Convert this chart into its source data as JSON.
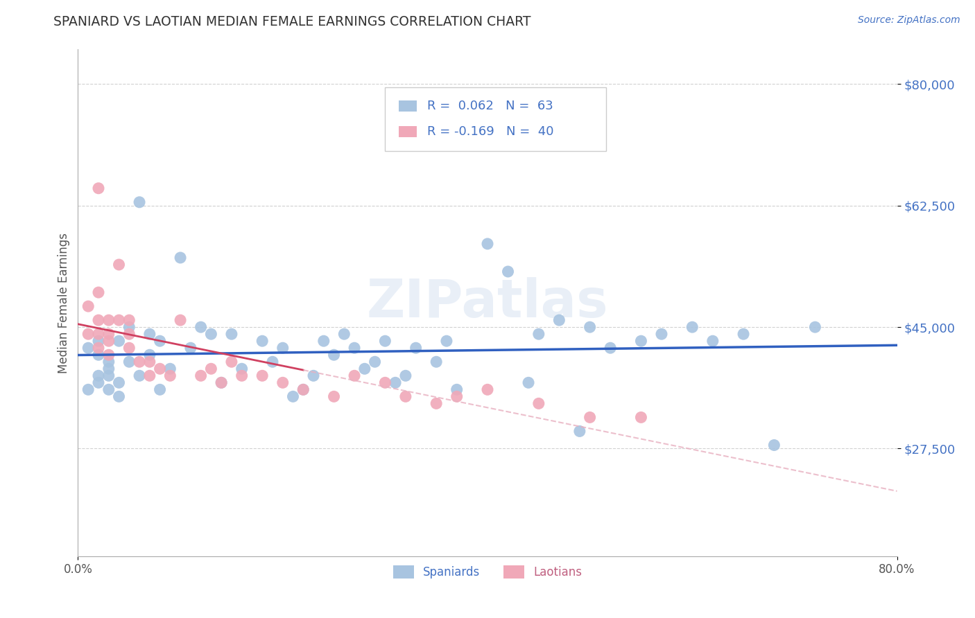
{
  "title": "SPANIARD VS LAOTIAN MEDIAN FEMALE EARNINGS CORRELATION CHART",
  "source_text": "Source: ZipAtlas.com",
  "ylabel": "Median Female Earnings",
  "xlim": [
    0.0,
    0.8
  ],
  "ylim": [
    12000,
    85000
  ],
  "yticks": [
    27500,
    45000,
    62500,
    80000
  ],
  "ytick_labels": [
    "$27,500",
    "$45,000",
    "$62,500",
    "$80,000"
  ],
  "background_color": "#ffffff",
  "grid_color": "#cccccc",
  "spaniards_color": "#a8c4e0",
  "laotians_color": "#f0a8b8",
  "spaniards_line_color": "#3060c0",
  "laotians_line_color": "#d04060",
  "laotians_dash_color": "#e8b0c0",
  "r_spaniards": "0.062",
  "n_spaniards": "63",
  "r_laotians": "-0.169",
  "n_laotians": "40",
  "legend_label_spaniards": "Spaniards",
  "legend_label_laotians": "Laotians",
  "watermark": "ZIPatlas",
  "spaniards_x": [
    0.01,
    0.01,
    0.02,
    0.02,
    0.02,
    0.02,
    0.03,
    0.03,
    0.03,
    0.03,
    0.04,
    0.04,
    0.04,
    0.05,
    0.05,
    0.06,
    0.06,
    0.07,
    0.07,
    0.08,
    0.08,
    0.09,
    0.1,
    0.11,
    0.12,
    0.13,
    0.14,
    0.15,
    0.16,
    0.18,
    0.19,
    0.2,
    0.21,
    0.22,
    0.23,
    0.24,
    0.25,
    0.26,
    0.27,
    0.28,
    0.29,
    0.3,
    0.31,
    0.32,
    0.33,
    0.35,
    0.36,
    0.37,
    0.4,
    0.42,
    0.44,
    0.45,
    0.47,
    0.49,
    0.5,
    0.52,
    0.55,
    0.57,
    0.6,
    0.62,
    0.65,
    0.68,
    0.72
  ],
  "spaniards_y": [
    42000,
    36000,
    38000,
    41000,
    43000,
    37000,
    40000,
    39000,
    36000,
    38000,
    43000,
    37000,
    35000,
    45000,
    40000,
    63000,
    38000,
    44000,
    41000,
    43000,
    36000,
    39000,
    55000,
    42000,
    45000,
    44000,
    37000,
    44000,
    39000,
    43000,
    40000,
    42000,
    35000,
    36000,
    38000,
    43000,
    41000,
    44000,
    42000,
    39000,
    40000,
    43000,
    37000,
    38000,
    42000,
    40000,
    43000,
    36000,
    57000,
    53000,
    37000,
    44000,
    46000,
    30000,
    45000,
    42000,
    43000,
    44000,
    45000,
    43000,
    44000,
    28000,
    45000
  ],
  "laotians_x": [
    0.01,
    0.01,
    0.02,
    0.02,
    0.02,
    0.02,
    0.02,
    0.03,
    0.03,
    0.03,
    0.03,
    0.04,
    0.04,
    0.05,
    0.05,
    0.05,
    0.06,
    0.07,
    0.07,
    0.08,
    0.09,
    0.1,
    0.12,
    0.13,
    0.14,
    0.15,
    0.16,
    0.18,
    0.2,
    0.22,
    0.25,
    0.27,
    0.3,
    0.32,
    0.35,
    0.37,
    0.4,
    0.45,
    0.5,
    0.55
  ],
  "laotians_y": [
    48000,
    44000,
    65000,
    50000,
    46000,
    44000,
    42000,
    46000,
    44000,
    43000,
    41000,
    54000,
    46000,
    46000,
    44000,
    42000,
    40000,
    40000,
    38000,
    39000,
    38000,
    46000,
    38000,
    39000,
    37000,
    40000,
    38000,
    38000,
    37000,
    36000,
    35000,
    38000,
    37000,
    35000,
    34000,
    35000,
    36000,
    34000,
    32000,
    32000
  ]
}
